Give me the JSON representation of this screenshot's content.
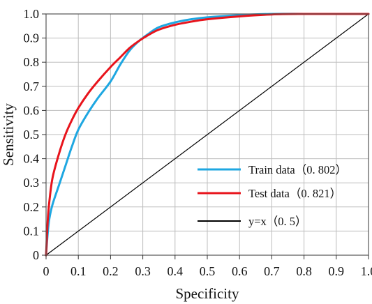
{
  "chart_data": {
    "type": "line",
    "xlabel": "Specificity",
    "ylabel": "Sensitivity",
    "xlim": [
      0,
      1
    ],
    "ylim": [
      0,
      1
    ],
    "x_ticks": [
      0,
      0.1,
      0.2,
      0.3,
      0.4,
      0.5,
      0.6,
      0.7,
      0.8,
      0.9,
      1.0
    ],
    "x_tick_labels": [
      "0",
      "0.1",
      "0.2",
      "0.3",
      "0.4",
      "0.5",
      "0.6",
      "0.7",
      "0.8",
      "0.9",
      "1.0"
    ],
    "y_ticks": [
      0,
      0.1,
      0.2,
      0.3,
      0.4,
      0.5,
      0.6,
      0.7,
      0.8,
      0.9,
      1.0
    ],
    "y_tick_labels": [
      "0",
      "0.1",
      "0.2",
      "0.3",
      "0.4",
      "0.5",
      "0.6",
      "0.7",
      "0.8",
      "0.9",
      "1.0"
    ],
    "grid": true,
    "legend_position": "bottom-right",
    "series": [
      {
        "name": "Train data（0. 802）",
        "color": "#1ea7e1",
        "x": [
          0,
          0.005,
          0.01,
          0.02,
          0.04,
          0.06,
          0.08,
          0.1,
          0.13,
          0.16,
          0.2,
          0.23,
          0.26,
          0.29,
          0.32,
          0.35,
          0.4,
          0.45,
          0.5,
          0.6,
          0.7,
          0.8,
          0.9,
          1.0
        ],
        "y": [
          0,
          0.09,
          0.15,
          0.21,
          0.29,
          0.37,
          0.45,
          0.52,
          0.59,
          0.65,
          0.72,
          0.79,
          0.85,
          0.89,
          0.92,
          0.945,
          0.965,
          0.978,
          0.986,
          0.995,
          1.0,
          1.0,
          1.0,
          1.0
        ]
      },
      {
        "name": "Test data（0. 821）",
        "color": "#e8141c",
        "x": [
          0,
          0.005,
          0.01,
          0.02,
          0.04,
          0.06,
          0.08,
          0.1,
          0.13,
          0.16,
          0.2,
          0.23,
          0.26,
          0.29,
          0.32,
          0.35,
          0.4,
          0.45,
          0.5,
          0.6,
          0.7,
          0.8,
          0.9,
          1.0
        ],
        "y": [
          0,
          0.14,
          0.22,
          0.32,
          0.42,
          0.5,
          0.56,
          0.61,
          0.67,
          0.72,
          0.78,
          0.82,
          0.86,
          0.89,
          0.915,
          0.935,
          0.955,
          0.968,
          0.978,
          0.99,
          0.998,
          1.0,
          1.0,
          1.0
        ]
      },
      {
        "name": "y=x（0. 5）",
        "color": "#000000",
        "x": [
          0,
          1
        ],
        "y": [
          0,
          1
        ]
      }
    ]
  }
}
